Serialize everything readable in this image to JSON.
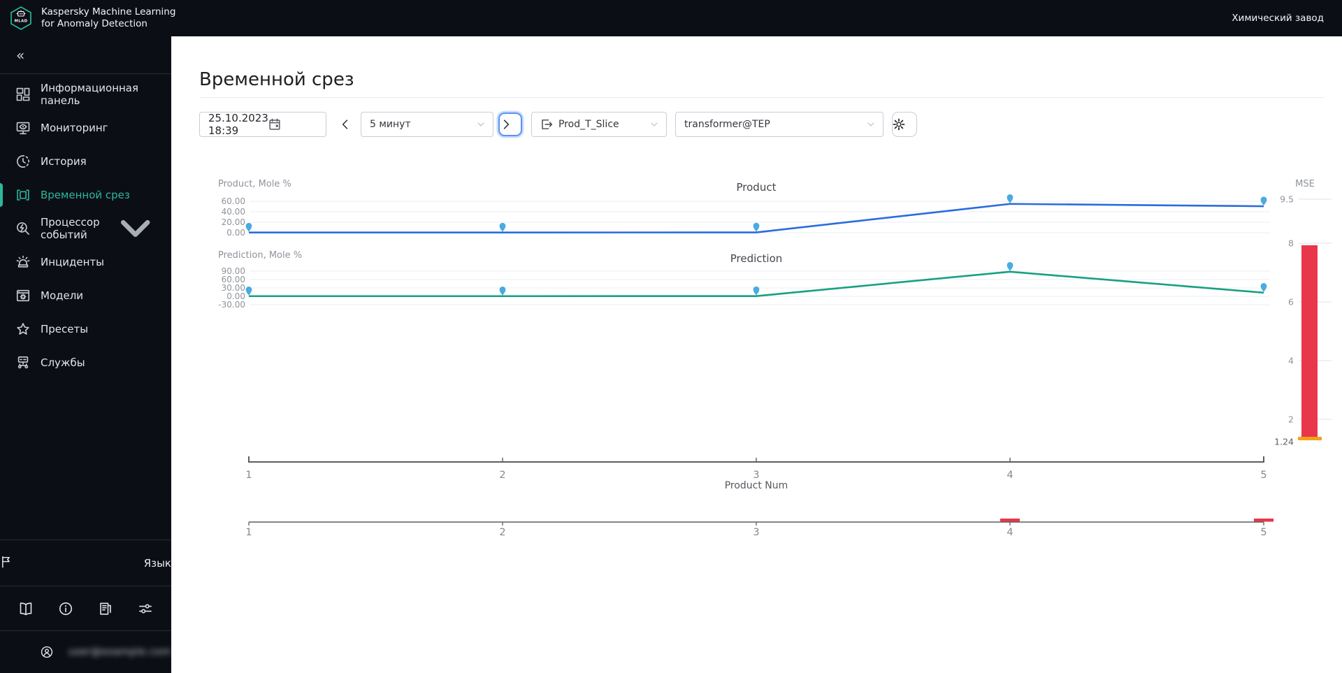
{
  "app": {
    "name_line1": "Kaspersky Machine Learning",
    "name_line2": "for Anomaly Detection",
    "logo_text": "MLAD",
    "site_name": "Химический завод",
    "accent_color": "#2db79b"
  },
  "sidebar": {
    "items": [
      {
        "label": "Информационная панель",
        "icon": "dashboard-icon",
        "active": false
      },
      {
        "label": "Мониторинг",
        "icon": "monitoring-icon",
        "active": false
      },
      {
        "label": "История",
        "icon": "history-icon",
        "active": false
      },
      {
        "label": "Временной срез",
        "icon": "time-slice-icon",
        "active": true
      },
      {
        "label": "Процессор событий",
        "icon": "event-processor-icon",
        "active": false,
        "chevron": true
      },
      {
        "label": "Инциденты",
        "icon": "incidents-icon",
        "active": false
      },
      {
        "label": "Модели",
        "icon": "models-icon",
        "active": false
      },
      {
        "label": "Пресеты",
        "icon": "presets-icon",
        "active": false
      },
      {
        "label": "Службы",
        "icon": "services-icon",
        "active": false
      }
    ],
    "language_label": "Язык",
    "footer_icons": [
      "manual-icon",
      "about-icon",
      "news-icon",
      "settings-icon"
    ],
    "email_blurred": "user@example.com"
  },
  "page": {
    "title": "Временной срез"
  },
  "toolbar": {
    "datetime_value": "25.10.2023  18:39",
    "interval_value": "5 минут",
    "slice_value": "Prod_T_Slice",
    "model_value": "transformer@TEP"
  },
  "chart_data": {
    "type": "line",
    "x": [
      1,
      2,
      3,
      4,
      5
    ],
    "x_tick_labels": [
      "1",
      "2",
      "3",
      "4",
      "5"
    ],
    "xlabel": "Product Num",
    "marker_color": "#49abe0",
    "grid_color": "#e9edf3",
    "series": [
      {
        "name": "Product",
        "axis_label": "Product, Mole %",
        "color": "#2b6bdf",
        "values": [
          0.4,
          0.4,
          0.6,
          55,
          50.5
        ],
        "yticks": [
          60,
          40,
          20,
          0
        ],
        "ytick_labels": [
          "60.00",
          "40.00",
          "20.00",
          "0.00"
        ]
      },
      {
        "name": "Prediction",
        "axis_label": "Prediction, Mole %",
        "color": "#16a183",
        "values": [
          0.6,
          0.6,
          0.8,
          88,
          13
        ],
        "yticks": [
          90,
          60,
          30,
          0,
          -30
        ],
        "ytick_labels": [
          "90.00",
          "60.00",
          "30.00",
          "0.00",
          "-30.00"
        ]
      }
    ],
    "mse": {
      "label": "MSE",
      "ticks": [
        9.5,
        8,
        6,
        4,
        2
      ],
      "tick_labels": [
        "9.5",
        "8",
        "6",
        "4",
        "2"
      ],
      "bar_value": 7.93,
      "threshold_value": 1.24,
      "threshold_label": "1.24",
      "bar_color": "#e8374a",
      "threshold_color": "#f2a41c"
    },
    "overview": {
      "tick_labels": [
        "1",
        "2",
        "3",
        "4",
        "5"
      ],
      "anomaly_marks": [
        4,
        5
      ],
      "mark_color": "#e8374a"
    }
  }
}
